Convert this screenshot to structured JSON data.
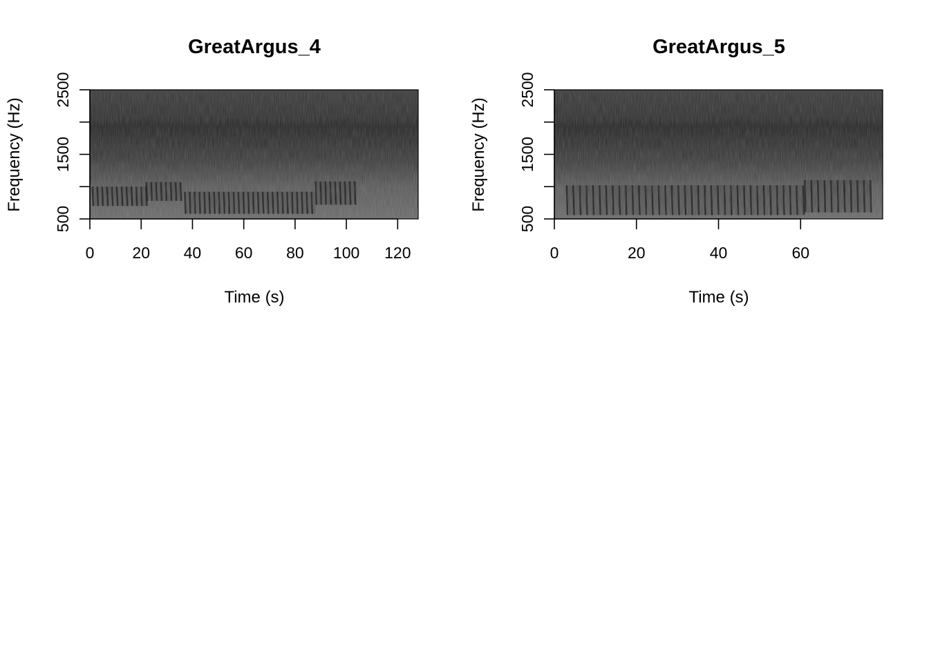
{
  "chart_data": [
    {
      "type": "heatmap",
      "title": "GreatArgus_4",
      "xlabel": "Time (s)",
      "ylabel": "Frequency (Hz)",
      "xlim": [
        0,
        128
      ],
      "ylim": [
        500,
        2500
      ],
      "xticks": [
        0,
        20,
        40,
        60,
        80,
        100,
        120
      ],
      "yticks": [
        500,
        1000,
        1500,
        2000,
        2500
      ],
      "xtick_labels": [
        "0",
        "20",
        "40",
        "60",
        "80",
        "100",
        "120"
      ],
      "ytick_labels": [
        "500",
        "",
        "1500",
        "",
        "2500"
      ],
      "colormap": "grayscale",
      "call_segments": [
        {
          "t_start": 1,
          "t_end": 22,
          "f_low": 700,
          "f_high": 1000,
          "pulse_rate": 1.9
        },
        {
          "t_start": 22,
          "t_end": 36,
          "f_low": 780,
          "f_high": 1070,
          "pulse_rate": 1.9
        },
        {
          "t_start": 37,
          "t_end": 88,
          "f_low": 580,
          "f_high": 920,
          "pulse_rate": 1.9
        },
        {
          "t_start": 88,
          "t_end": 104,
          "f_low": 720,
          "f_high": 1080,
          "pulse_rate": 1.9
        }
      ]
    },
    {
      "type": "heatmap",
      "title": "GreatArgus_5",
      "xlabel": "Time (s)",
      "ylabel": "Frequency (Hz)",
      "xlim": [
        0,
        80
      ],
      "ylim": [
        500,
        2500
      ],
      "xticks": [
        0,
        20,
        40,
        60
      ],
      "yticks": [
        500,
        1000,
        1500,
        2000,
        2500
      ],
      "xtick_labels": [
        "0",
        "20",
        "40",
        "60"
      ],
      "ytick_labels": [
        "500",
        "",
        "1500",
        "",
        "2500"
      ],
      "colormap": "grayscale",
      "call_segments": [
        {
          "t_start": 3,
          "t_end": 61,
          "f_low": 560,
          "f_high": 1020,
          "pulse_rate": 1.6
        },
        {
          "t_start": 61,
          "t_end": 77,
          "f_low": 600,
          "f_high": 1100,
          "pulse_rate": 1.6
        }
      ]
    }
  ]
}
